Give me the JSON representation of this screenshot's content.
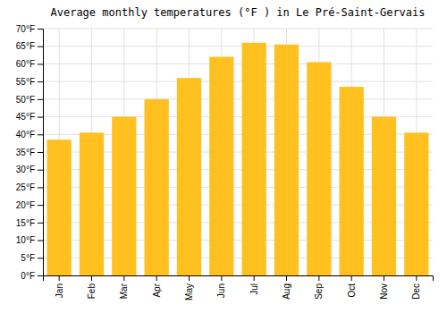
{
  "chart_data": {
    "type": "bar",
    "title": "Average monthly temperatures (°F ) in Le Pré-Saint-Gervais",
    "categories": [
      "Jan",
      "Feb",
      "Mar",
      "Apr",
      "May",
      "Jun",
      "Jul",
      "Aug",
      "Sep",
      "Oct",
      "Nov",
      "Dec"
    ],
    "values": [
      38.5,
      40.5,
      45.0,
      50.0,
      56.0,
      62.0,
      66.0,
      65.5,
      60.5,
      53.5,
      45.0,
      40.5
    ],
    "color": "#FFC020",
    "ylim": [
      0,
      70
    ],
    "yticks": [
      {
        "value": 0,
        "label": "0°F"
      },
      {
        "value": 5,
        "label": "5°F"
      },
      {
        "value": 10,
        "label": "10°F"
      },
      {
        "value": 15,
        "label": "15°F"
      },
      {
        "value": 20,
        "label": "20°F"
      },
      {
        "value": 25,
        "label": "25°F"
      },
      {
        "value": 30,
        "label": "30°F"
      },
      {
        "value": 35,
        "label": "35°F"
      },
      {
        "value": 40,
        "label": "40°F"
      },
      {
        "value": 45,
        "label": "45°F"
      },
      {
        "value": 50,
        "label": "50°F"
      },
      {
        "value": 55,
        "label": "55°F"
      },
      {
        "value": 60,
        "label": "60°F"
      },
      {
        "value": 65,
        "label": "65°F"
      },
      {
        "value": 70,
        "label": "70°F"
      }
    ],
    "grid": true
  }
}
